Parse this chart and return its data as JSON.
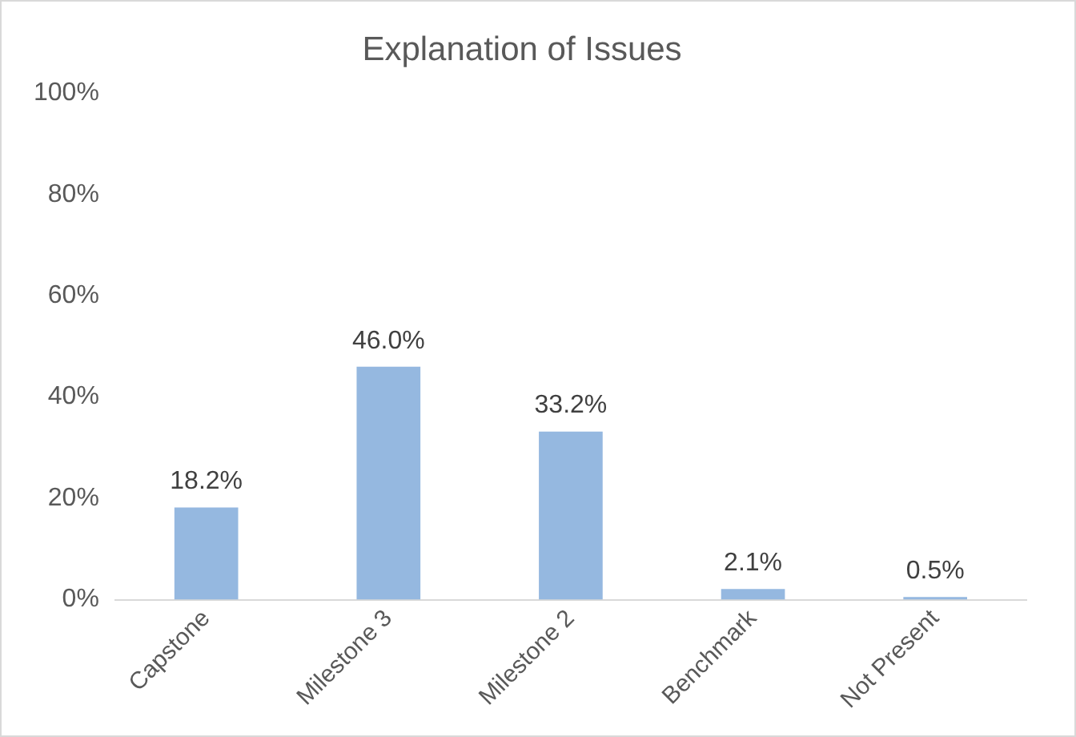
{
  "chart_data": {
    "type": "bar",
    "title": "Explanation of Issues",
    "categories": [
      "Capstone",
      "Milestone 3",
      "Milestone 2",
      "Benchmark",
      "Not Present"
    ],
    "values": [
      18.2,
      46.0,
      33.2,
      2.1,
      0.5
    ],
    "value_labels": [
      "18.2%",
      "46.0%",
      "33.2%",
      "2.1%",
      "0.5%"
    ],
    "color": "#95b8e0",
    "ylim": [
      0,
      100
    ],
    "yticks": [
      {
        "value": 0,
        "label": "0%"
      },
      {
        "value": 20,
        "label": "20%"
      },
      {
        "value": 40,
        "label": "40%"
      },
      {
        "value": 60,
        "label": "60%"
      },
      {
        "value": 80,
        "label": "80%"
      },
      {
        "value": 100,
        "label": "100%"
      }
    ],
    "grid": false,
    "legend": false
  }
}
